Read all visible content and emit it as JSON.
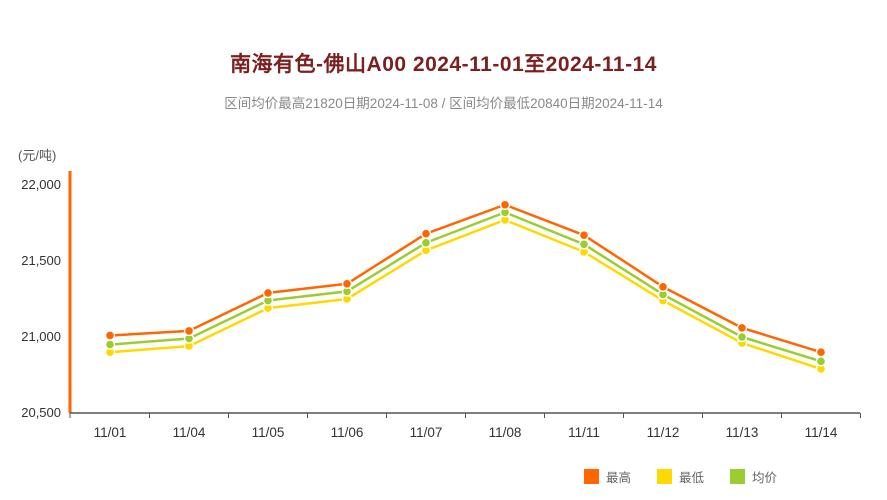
{
  "header": {
    "title": "南海有色-佛山A00 2024-11-01至2024-11-14",
    "subtitle": "区间均价最高21820日期2024-11-08 / 区间均价最低20840日期2024-11-14"
  },
  "chart_data": {
    "type": "line",
    "title": "南海有色-佛山A00 2024-11-01至2024-11-14",
    "unit_label": "(元/吨)",
    "x": [
      "11/01",
      "11/04",
      "11/05",
      "11/06",
      "11/07",
      "11/08",
      "11/11",
      "11/12",
      "11/13",
      "11/14"
    ],
    "series": [
      {
        "name": "最高",
        "color": "#ff6600",
        "values": [
          21010,
          21040,
          21290,
          21350,
          21680,
          21870,
          21670,
          21330,
          21060,
          20900
        ]
      },
      {
        "name": "最低",
        "color": "#ffd800",
        "values": [
          20900,
          20940,
          21190,
          21250,
          21570,
          21770,
          21560,
          21240,
          20960,
          20790
        ]
      },
      {
        "name": "均价",
        "color": "#9acd32",
        "values": [
          20950,
          20990,
          21240,
          21300,
          21620,
          21820,
          21610,
          21280,
          21000,
          20840
        ]
      }
    ],
    "ylim": [
      20500,
      22000
    ],
    "yticks": [
      20500,
      21000,
      21500,
      22000
    ],
    "grid": false,
    "legend_position": "bottom-right",
    "yaxis_color": "#ff6600",
    "xaxis_color": "#555555",
    "tick_text_color": "#333333"
  }
}
